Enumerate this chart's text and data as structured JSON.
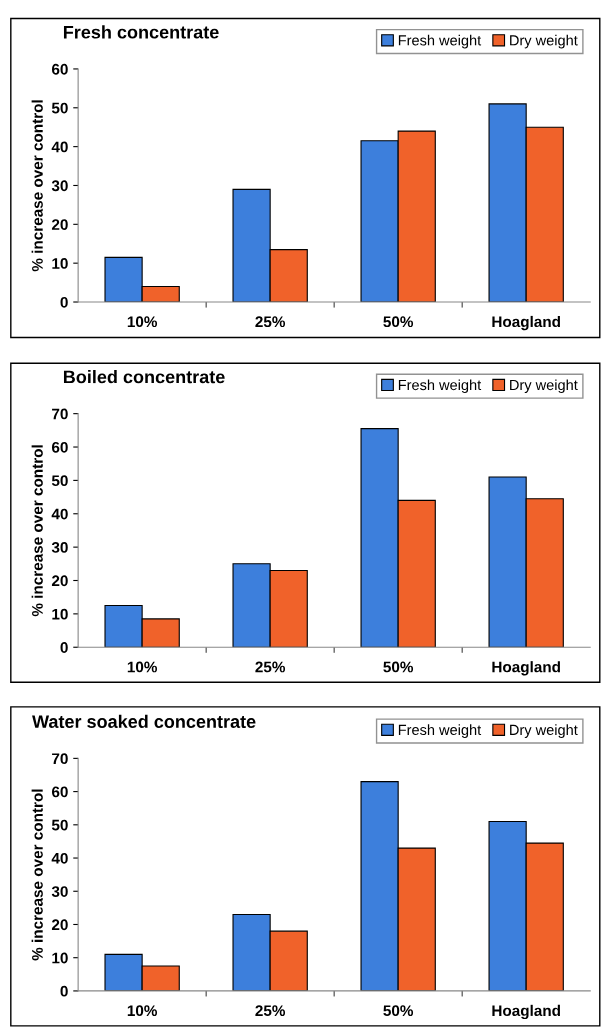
{
  "chart_data": [
    {
      "type": "bar",
      "title": "Fresh concentrate",
      "ylabel": "% increase over control",
      "categories": [
        "10%",
        "25%",
        "50%",
        "Hoagland"
      ],
      "series": [
        {
          "name": "Fresh weight",
          "color": "#3d7fdc",
          "values": [
            11.5,
            29,
            41.5,
            51
          ]
        },
        {
          "name": "Dry weight",
          "color": "#f0622a",
          "values": [
            4,
            13.5,
            44,
            45
          ]
        }
      ],
      "ylim": [
        0,
        60
      ],
      "yticks": [
        0,
        10,
        20,
        30,
        40,
        50,
        60
      ],
      "legend": "top right",
      "grid": false
    },
    {
      "type": "bar",
      "title": "Boiled concentrate",
      "ylabel": "% increase over control",
      "categories": [
        "10%",
        "25%",
        "50%",
        "Hoagland"
      ],
      "series": [
        {
          "name": "Fresh weight",
          "color": "#3d7fdc",
          "values": [
            12.5,
            25,
            65.5,
            51
          ]
        },
        {
          "name": "Dry weight",
          "color": "#f0622a",
          "values": [
            8.5,
            23,
            44,
            44.5
          ]
        }
      ],
      "ylim": [
        0,
        70
      ],
      "yticks": [
        0,
        10,
        20,
        30,
        40,
        50,
        60,
        70
      ],
      "legend": "top right",
      "grid": false
    },
    {
      "type": "bar",
      "title": "Water soaked concentrate",
      "ylabel": "% increase over control",
      "categories": [
        "10%",
        "25%",
        "50%",
        "Hoagland"
      ],
      "series": [
        {
          "name": "Fresh weight",
          "color": "#3d7fdc",
          "values": [
            11,
            23,
            63,
            51
          ]
        },
        {
          "name": "Dry weight",
          "color": "#f0622a",
          "values": [
            7.5,
            18,
            43,
            44.5
          ]
        }
      ],
      "ylim": [
        0,
        70
      ],
      "yticks": [
        0,
        10,
        20,
        30,
        40,
        50,
        60,
        70
      ],
      "legend": "top right",
      "grid": false
    }
  ]
}
